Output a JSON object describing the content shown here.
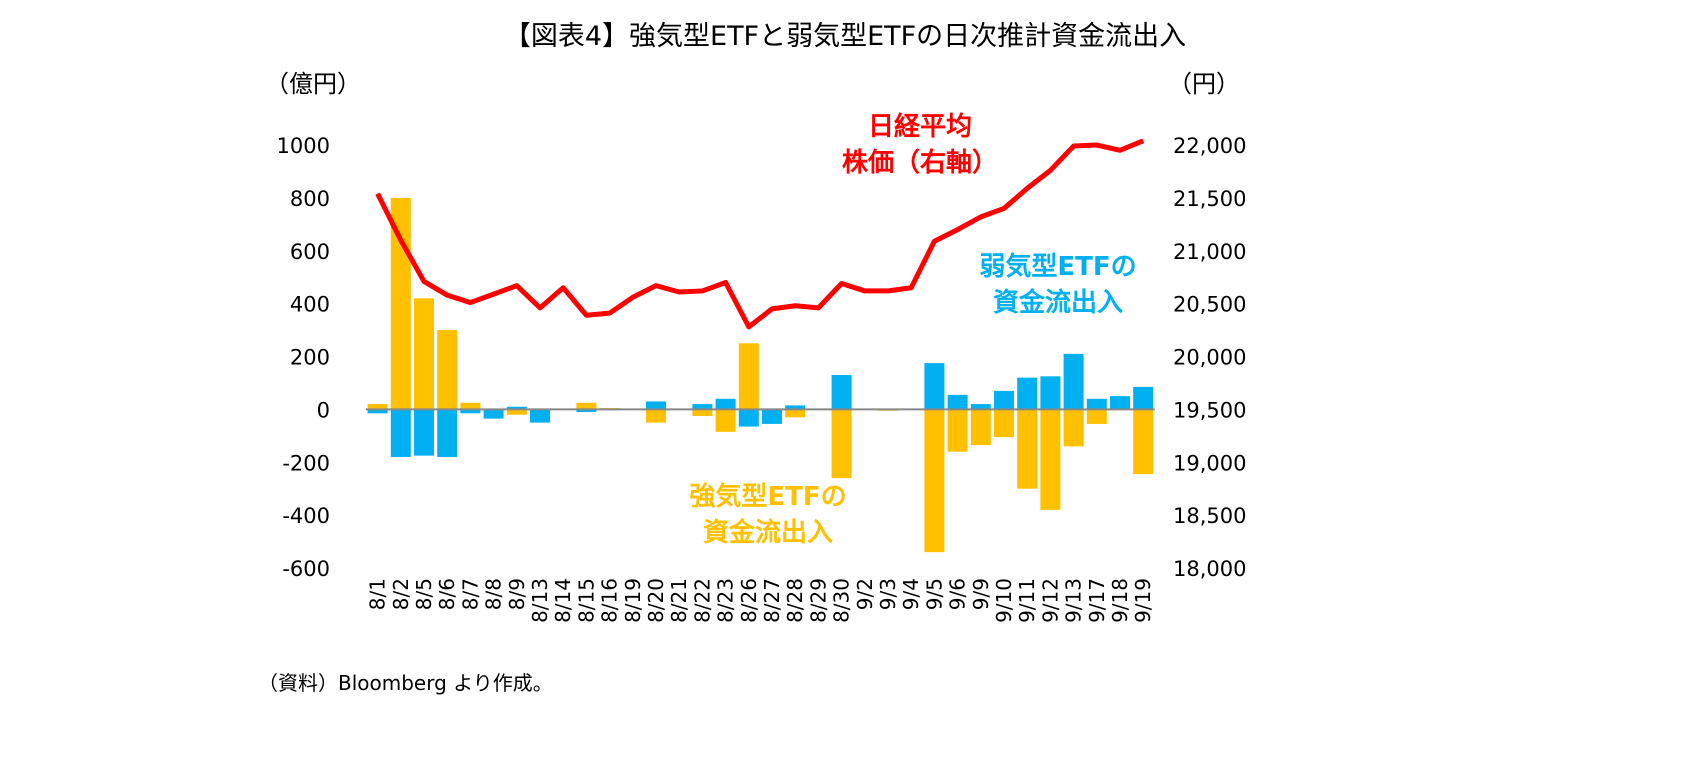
{
  "chart_data": {
    "type": "bar",
    "title": "【図表4】強気型ETFと弱気型ETFの日次推計資金流出入",
    "ylabel_left": "（億円）",
    "ylabel_right": "（円）",
    "source": "（資料）Bloomberg より作成。",
    "ylim_left": [
      -600,
      1000
    ],
    "yticks_left": [
      1000,
      800,
      600,
      400,
      200,
      0,
      -200,
      -400,
      -600
    ],
    "ylim_right": [
      18000,
      22000
    ],
    "yticks_right": [
      "22,000",
      "21,500",
      "21,000",
      "20,500",
      "20,000",
      "19,500",
      "19,000",
      "18,500",
      "18,000"
    ],
    "grid": false,
    "categories": [
      "8/1",
      "8/2",
      "8/5",
      "8/6",
      "8/7",
      "8/8",
      "8/9",
      "8/13",
      "8/14",
      "8/15",
      "8/16",
      "8/19",
      "8/20",
      "8/21",
      "8/22",
      "8/23",
      "8/26",
      "8/27",
      "8/28",
      "8/29",
      "8/30",
      "9/2",
      "9/3",
      "9/4",
      "9/5",
      "9/6",
      "9/9",
      "9/10",
      "9/11",
      "9/12",
      "9/13",
      "9/17",
      "9/18",
      "9/19"
    ],
    "series": [
      {
        "name": "強気型ETFの資金流出入",
        "label_lines": [
          "強気型ETFの",
          "資金流出入"
        ],
        "type": "bar",
        "axis": "left",
        "color": "#FFC000",
        "values": [
          20,
          800,
          420,
          300,
          25,
          0,
          -20,
          0,
          0,
          25,
          5,
          0,
          -50,
          0,
          -25,
          -85,
          250,
          -50,
          -30,
          0,
          -260,
          0,
          -5,
          0,
          -540,
          -160,
          -135,
          -105,
          -300,
          -380,
          -140,
          -55,
          0,
          -245
        ]
      },
      {
        "name": "弱気型ETFの資金流出入",
        "label_lines": [
          "弱気型ETFの",
          "資金流出入"
        ],
        "type": "bar",
        "axis": "left",
        "color": "#00B0F0",
        "values": [
          -15,
          -180,
          -175,
          -180,
          -15,
          -35,
          10,
          -50,
          0,
          -10,
          0,
          0,
          30,
          3,
          20,
          40,
          -65,
          -55,
          15,
          0,
          130,
          0,
          0,
          0,
          175,
          55,
          20,
          70,
          120,
          125,
          210,
          40,
          50,
          85
        ]
      },
      {
        "name": "日経平均株価（右軸）",
        "label_lines": [
          "日経平均",
          "株価（右軸）"
        ],
        "type": "line",
        "axis": "right",
        "color": "#FF0000",
        "values": [
          21540,
          21100,
          20710,
          20580,
          20510,
          20590,
          20670,
          20460,
          20650,
          20390,
          20410,
          20560,
          20670,
          20610,
          20620,
          20700,
          20280,
          20450,
          20480,
          20460,
          20690,
          20620,
          20620,
          20650,
          21090,
          21200,
          21320,
          21400,
          21590,
          21760,
          21990,
          22000,
          21950,
          22040
        ]
      }
    ]
  }
}
